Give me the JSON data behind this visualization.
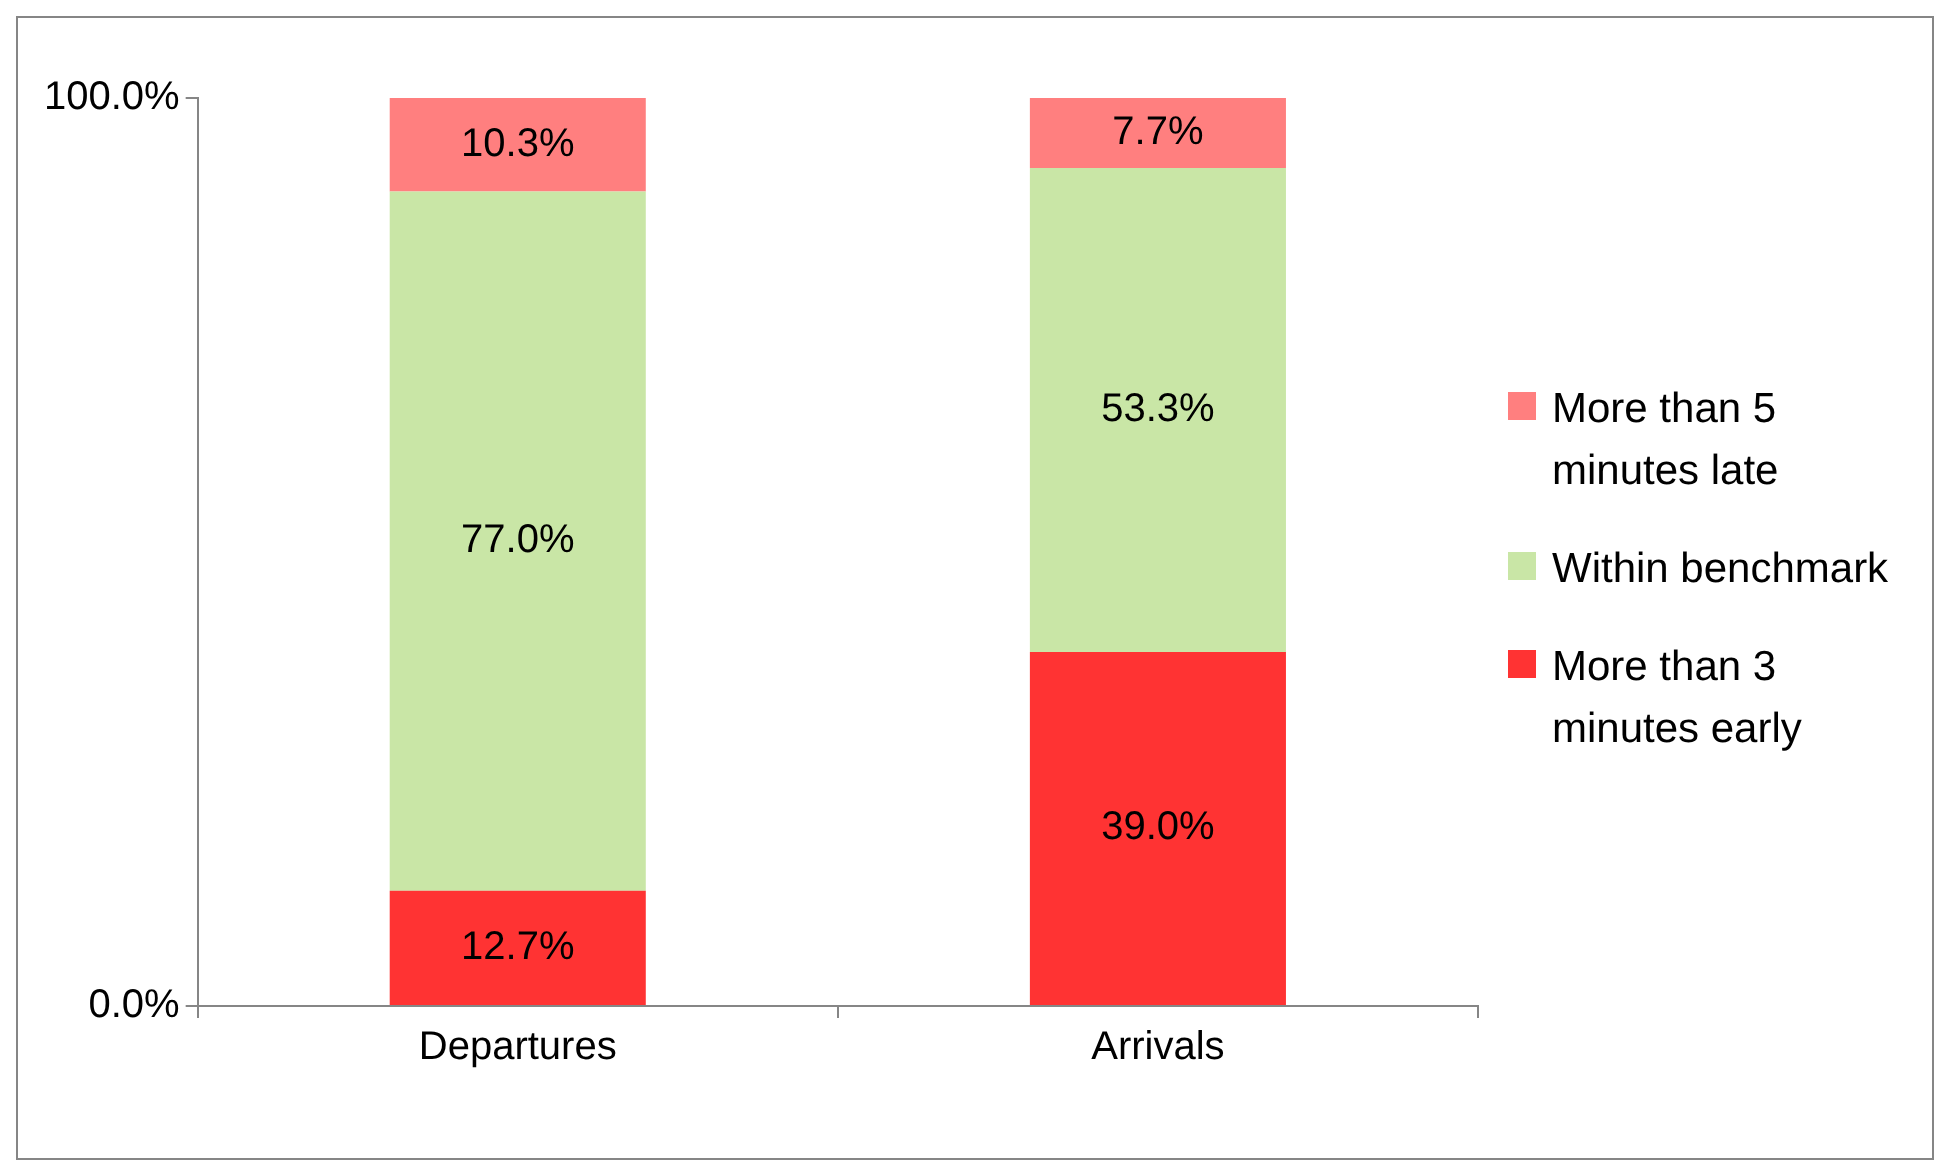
{
  "chart_data": {
    "type": "bar",
    "stacked": true,
    "categories": [
      "Departures",
      "Arrivals"
    ],
    "series": [
      {
        "name": "More than 3 minutes early",
        "color": "#ff3333",
        "values": [
          12.7,
          39.0
        ],
        "value_labels": [
          "12.7%",
          "39.0%"
        ]
      },
      {
        "name": "Within benchmark",
        "color": "#c9e6a6",
        "values": [
          77.0,
          53.3
        ],
        "value_labels": [
          "77.0%",
          "53.3%"
        ]
      },
      {
        "name": "More than 5 minutes late",
        "color": "#ff7f7f",
        "values": [
          10.3,
          7.7
        ],
        "value_labels": [
          "10.3%",
          "7.7%"
        ]
      }
    ],
    "ylim": [
      0,
      100
    ],
    "yticks": [
      {
        "value": 0,
        "label": "0.0%"
      },
      {
        "value": 100,
        "label": "100.0%"
      }
    ],
    "legend": "right"
  }
}
